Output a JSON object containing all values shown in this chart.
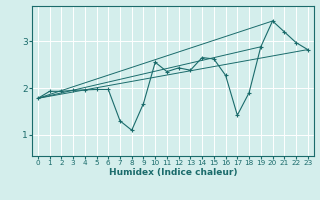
{
  "title": "",
  "xlabel": "Humidex (Indice chaleur)",
  "bg_color": "#d4eeec",
  "line_color": "#1a6b6b",
  "xlim": [
    -0.5,
    23.5
  ],
  "ylim": [
    0.55,
    3.75
  ],
  "yticks": [
    1,
    2,
    3
  ],
  "xticks": [
    0,
    1,
    2,
    3,
    4,
    5,
    6,
    7,
    8,
    9,
    10,
    11,
    12,
    13,
    14,
    15,
    16,
    17,
    18,
    19,
    20,
    21,
    22,
    23
  ],
  "main_x": [
    0,
    1,
    2,
    3,
    4,
    5,
    6,
    7,
    8,
    9,
    10,
    11,
    12,
    13,
    14,
    15,
    16,
    17,
    18,
    19,
    20,
    21,
    22,
    23
  ],
  "main_y": [
    1.78,
    1.93,
    1.93,
    1.95,
    1.96,
    1.97,
    1.97,
    1.3,
    1.1,
    1.67,
    2.55,
    2.35,
    2.43,
    2.38,
    2.65,
    2.62,
    2.27,
    1.42,
    1.9,
    2.88,
    3.43,
    3.2,
    2.97,
    2.82
  ],
  "envelope_lines": [
    {
      "x": [
        0,
        20
      ],
      "y": [
        1.78,
        3.43
      ]
    },
    {
      "x": [
        0,
        23
      ],
      "y": [
        1.78,
        2.82
      ]
    },
    {
      "x": [
        0,
        19
      ],
      "y": [
        1.78,
        2.88
      ]
    }
  ]
}
